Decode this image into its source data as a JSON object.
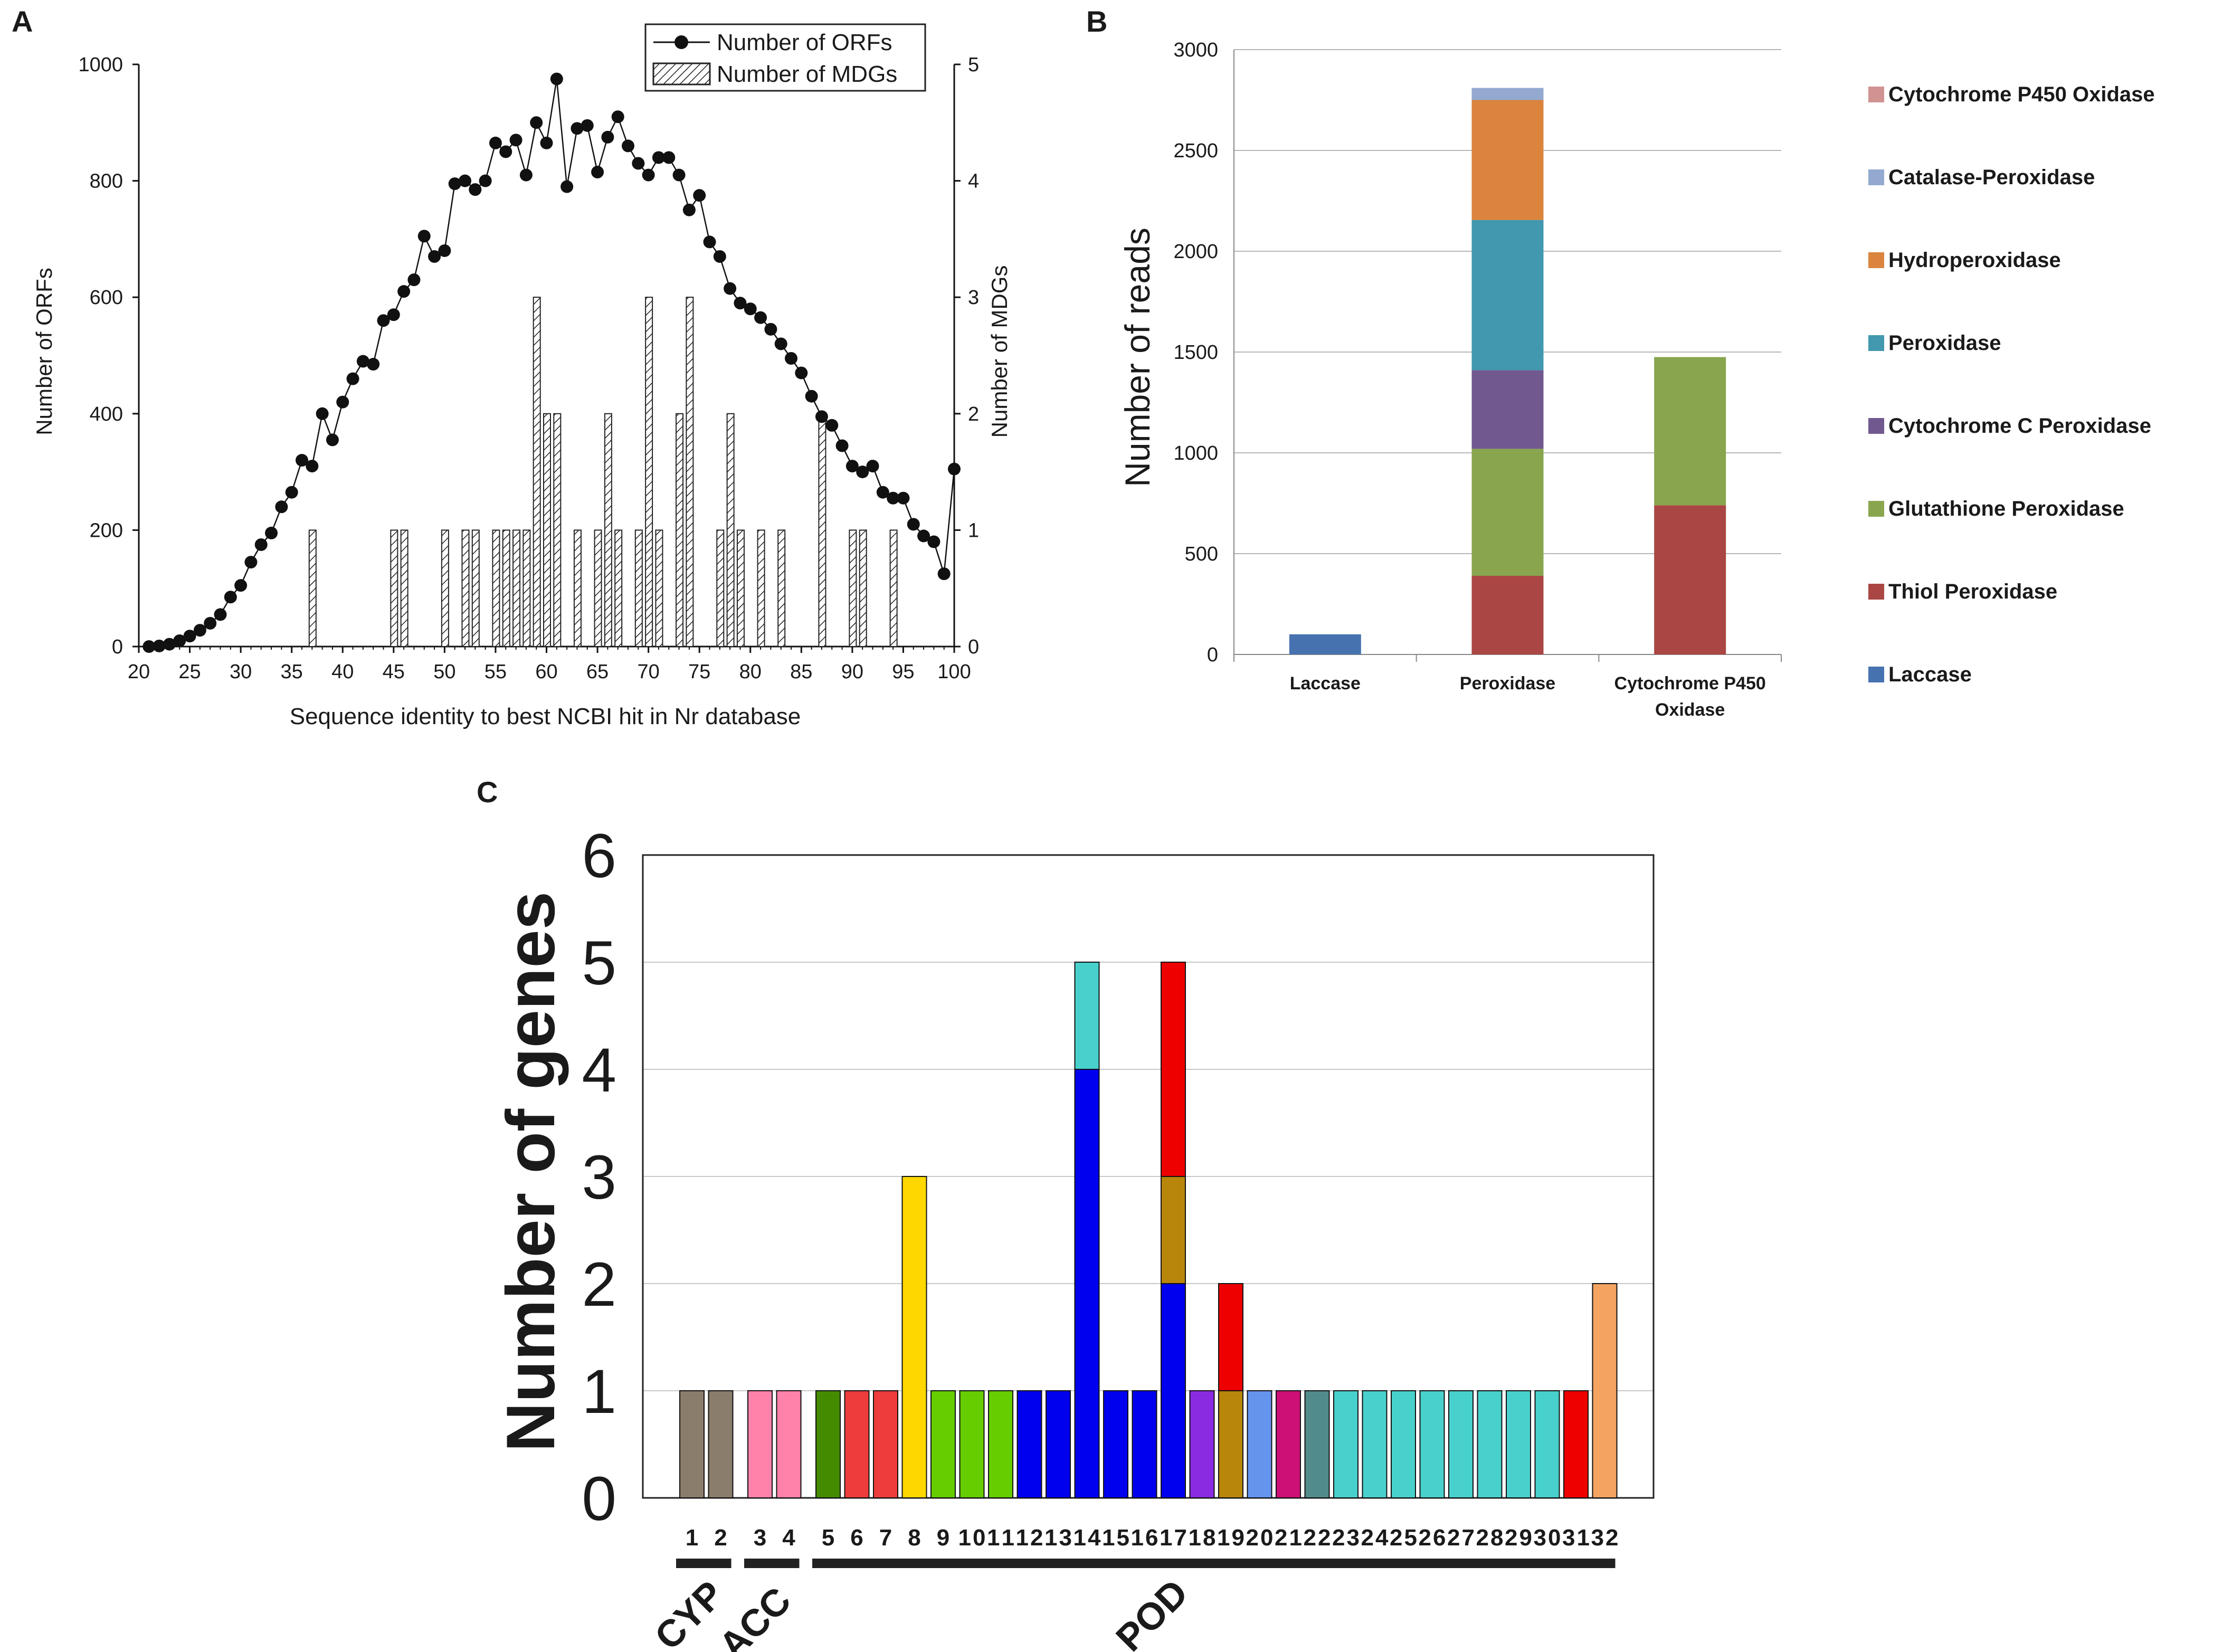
{
  "colors": {
    "laccase": "#4672b0",
    "thiol_peroxidase": "#aa4643",
    "glutathione_peroxidase": "#89a54e",
    "cytochrome_c_peroxidase": "#71588f",
    "peroxidase": "#4198af",
    "hydroperoxidase": "#db843d",
    "catalase_peroxidase": "#93a9cf",
    "cytochrome_p450_oxidase": "#d19392"
  },
  "chart_data": [
    {
      "panel": "A",
      "type": "line",
      "xlabel": "Sequence identity to best NCBI hit in Nr database",
      "ylabel": "Number of ORFs",
      "y2label": "Number of MDGs",
      "xlim": [
        20,
        100
      ],
      "ylim": [
        0,
        1000
      ],
      "y2lim": [
        0,
        5
      ],
      "xticks": [
        "20",
        "25",
        "30",
        "35",
        "40",
        "45",
        "50",
        "55",
        "60",
        "65",
        "70",
        "75",
        "80",
        "85",
        "90",
        "95",
        "100"
      ],
      "yticks": [
        "0",
        "200",
        "400",
        "600",
        "800",
        "1000"
      ],
      "y2ticks": [
        "0",
        "1",
        "2",
        "3",
        "4",
        "5"
      ],
      "legend": {
        "orfs": "Number of ORFs",
        "mdgs": "Number of MDGs"
      },
      "series": [
        {
          "name": "Number of ORFs",
          "type": "line",
          "x": [
            21,
            22,
            23,
            24,
            25,
            26,
            27,
            28,
            29,
            30,
            31,
            32,
            33,
            34,
            35,
            36,
            37,
            38,
            39,
            40,
            41,
            42,
            43,
            44,
            45,
            46,
            47,
            48,
            49,
            50,
            51,
            52,
            53,
            54,
            55,
            56,
            57,
            58,
            59,
            60,
            61,
            62,
            63,
            64,
            65,
            66,
            67,
            68,
            69,
            70,
            71,
            72,
            73,
            74,
            75,
            76,
            77,
            78,
            79,
            80,
            81,
            82,
            83,
            84,
            85,
            86,
            87,
            88,
            89,
            90,
            91,
            92,
            93,
            94,
            95,
            96,
            97,
            98,
            99,
            100
          ],
          "y": [
            0,
            1,
            4,
            10,
            18,
            28,
            40,
            55,
            85,
            105,
            145,
            175,
            195,
            240,
            265,
            320,
            310,
            400,
            355,
            420,
            460,
            490,
            485,
            560,
            570,
            610,
            630,
            705,
            670,
            680,
            795,
            800,
            785,
            800,
            865,
            850,
            870,
            810,
            900,
            865,
            975,
            790,
            890,
            895,
            815,
            875,
            910,
            860,
            830,
            810,
            840,
            840,
            810,
            750,
            775,
            695,
            670,
            615,
            590,
            580,
            565,
            545,
            520,
            495,
            470,
            430,
            395,
            380,
            345,
            310,
            300,
            310,
            265,
            255,
            255,
            210,
            190,
            180,
            125,
            305
          ]
        },
        {
          "name": "Number of MDGs",
          "type": "bar",
          "x": [
            37,
            45,
            46,
            50,
            52,
            53,
            55,
            56,
            57,
            58,
            59,
            60,
            61,
            63,
            65,
            66,
            67,
            69,
            70,
            71,
            73,
            74,
            77,
            78,
            79,
            81,
            83,
            87,
            90,
            91,
            94
          ],
          "y": [
            1,
            1,
            1,
            1,
            1,
            1,
            1,
            1,
            1,
            1,
            3,
            2,
            2,
            1,
            1,
            2,
            1,
            1,
            3,
            1,
            2,
            3,
            1,
            2,
            1,
            1,
            1,
            2,
            1,
            1,
            1
          ]
        }
      ]
    },
    {
      "panel": "B",
      "type": "bar",
      "stacked": true,
      "ylabel": "Number of reads",
      "ylim": [
        0,
        3000
      ],
      "yticks": [
        "0",
        "500",
        "1000",
        "1500",
        "2000",
        "2500",
        "3000"
      ],
      "categories": [
        "Laccase",
        "Peroxidase",
        "Cytochrome P450 Oxidase"
      ],
      "category_lines": [
        [
          "Laccase"
        ],
        [
          "Peroxidase"
        ],
        [
          "Cytochrome P450",
          "Oxidase"
        ]
      ],
      "series": [
        {
          "name": "Laccase",
          "values": [
            100,
            0,
            0
          ]
        },
        {
          "name": "Thiol Peroxidase",
          "values": [
            0,
            390,
            740
          ]
        },
        {
          "name": "Glutathione Peroxidase",
          "values": [
            0,
            630,
            735
          ]
        },
        {
          "name": "Cytochrome C Peroxidase",
          "values": [
            0,
            390,
            0
          ]
        },
        {
          "name": "Peroxidase",
          "values": [
            0,
            745,
            0
          ]
        },
        {
          "name": "Hydroperoxidase",
          "values": [
            0,
            595,
            0
          ]
        },
        {
          "name": "Catalase-Peroxidase",
          "values": [
            0,
            60,
            0
          ]
        },
        {
          "name": "Cytochrome P450 Oxidase",
          "values": [
            0,
            0,
            0
          ]
        }
      ],
      "legend": [
        "Cytochrome P450 Oxidase",
        "Catalase-Peroxidase",
        "Hydroperoxidase",
        "Peroxidase",
        "Cytochrome C Peroxidase",
        "Glutathione Peroxidase",
        "Thiol Peroxidase",
        "Laccase"
      ]
    },
    {
      "panel": "C",
      "type": "bar",
      "stacked": true,
      "ylabel": "Number of genes",
      "ylim": [
        0,
        6
      ],
      "yticks": [
        "0",
        "1",
        "2",
        "3",
        "4",
        "5",
        "6"
      ],
      "categories": [
        "1",
        "2",
        "3",
        "4",
        "5",
        "6",
        "7",
        "8",
        "9",
        "10",
        "11",
        "12",
        "13",
        "14",
        "15",
        "16",
        "17",
        "18",
        "19",
        "20",
        "21",
        "22",
        "23",
        "24",
        "25",
        "26",
        "27",
        "28",
        "29",
        "30",
        "31",
        "32"
      ],
      "bars": [
        {
          "segments": [
            {
              "value": 1,
              "color": "#8b7d6b"
            }
          ]
        },
        {
          "segments": [
            {
              "value": 1,
              "color": "#8b7d6b"
            }
          ]
        },
        {
          "segments": [
            {
              "value": 1,
              "color": "#ff82ab"
            }
          ]
        },
        {
          "segments": [
            {
              "value": 1,
              "color": "#ff82ab"
            }
          ]
        },
        {
          "segments": [
            {
              "value": 1,
              "color": "#458b00"
            }
          ]
        },
        {
          "segments": [
            {
              "value": 1,
              "color": "#ee3b3b"
            }
          ]
        },
        {
          "segments": [
            {
              "value": 1,
              "color": "#ee3b3b"
            }
          ]
        },
        {
          "segments": [
            {
              "value": 3,
              "color": "#ffd700"
            }
          ]
        },
        {
          "segments": [
            {
              "value": 1,
              "color": "#66cd00"
            }
          ]
        },
        {
          "segments": [
            {
              "value": 1,
              "color": "#66cd00"
            }
          ]
        },
        {
          "segments": [
            {
              "value": 1,
              "color": "#66cd00"
            }
          ]
        },
        {
          "segments": [
            {
              "value": 1,
              "color": "#0000ee"
            }
          ]
        },
        {
          "segments": [
            {
              "value": 1,
              "color": "#0000ee"
            }
          ]
        },
        {
          "segments": [
            {
              "value": 4,
              "color": "#0000ee"
            },
            {
              "value": 1,
              "color": "#48d1cc"
            }
          ]
        },
        {
          "segments": [
            {
              "value": 1,
              "color": "#0000ee"
            }
          ]
        },
        {
          "segments": [
            {
              "value": 1,
              "color": "#0000ee"
            }
          ]
        },
        {
          "segments": [
            {
              "value": 2,
              "color": "#0000ee"
            },
            {
              "value": 1,
              "color": "#b8860b"
            },
            {
              "value": 2,
              "color": "#ee0000"
            }
          ]
        },
        {
          "segments": [
            {
              "value": 1,
              "color": "#8a2be2"
            }
          ]
        },
        {
          "segments": [
            {
              "value": 1,
              "color": "#b8860b"
            },
            {
              "value": 1,
              "color": "#ee0000"
            }
          ]
        },
        {
          "segments": [
            {
              "value": 1,
              "color": "#6495ed"
            }
          ]
        },
        {
          "segments": [
            {
              "value": 1,
              "color": "#cd1076"
            }
          ]
        },
        {
          "segments": [
            {
              "value": 1,
              "color": "#528b8b"
            }
          ]
        },
        {
          "segments": [
            {
              "value": 1,
              "color": "#48d1cc"
            }
          ]
        },
        {
          "segments": [
            {
              "value": 1,
              "color": "#48d1cc"
            }
          ]
        },
        {
          "segments": [
            {
              "value": 1,
              "color": "#48d1cc"
            }
          ]
        },
        {
          "segments": [
            {
              "value": 1,
              "color": "#48d1cc"
            }
          ]
        },
        {
          "segments": [
            {
              "value": 1,
              "color": "#48d1cc"
            }
          ]
        },
        {
          "segments": [
            {
              "value": 1,
              "color": "#48d1cc"
            }
          ]
        },
        {
          "segments": [
            {
              "value": 1,
              "color": "#48d1cc"
            }
          ]
        },
        {
          "segments": [
            {
              "value": 1,
              "color": "#48d1cc"
            }
          ]
        },
        {
          "segments": [
            {
              "value": 1,
              "color": "#ee0000"
            }
          ]
        },
        {
          "segments": [
            {
              "value": 2,
              "color": "#f4a460"
            }
          ]
        }
      ],
      "groups": [
        {
          "label": "CYP",
          "from": 1,
          "to": 2
        },
        {
          "label": "LACC",
          "from": 3,
          "to": 4
        },
        {
          "label": "POD",
          "from": 5,
          "to": 32
        }
      ]
    }
  ],
  "panels": {
    "a": "A",
    "b": "B",
    "c": "C"
  }
}
